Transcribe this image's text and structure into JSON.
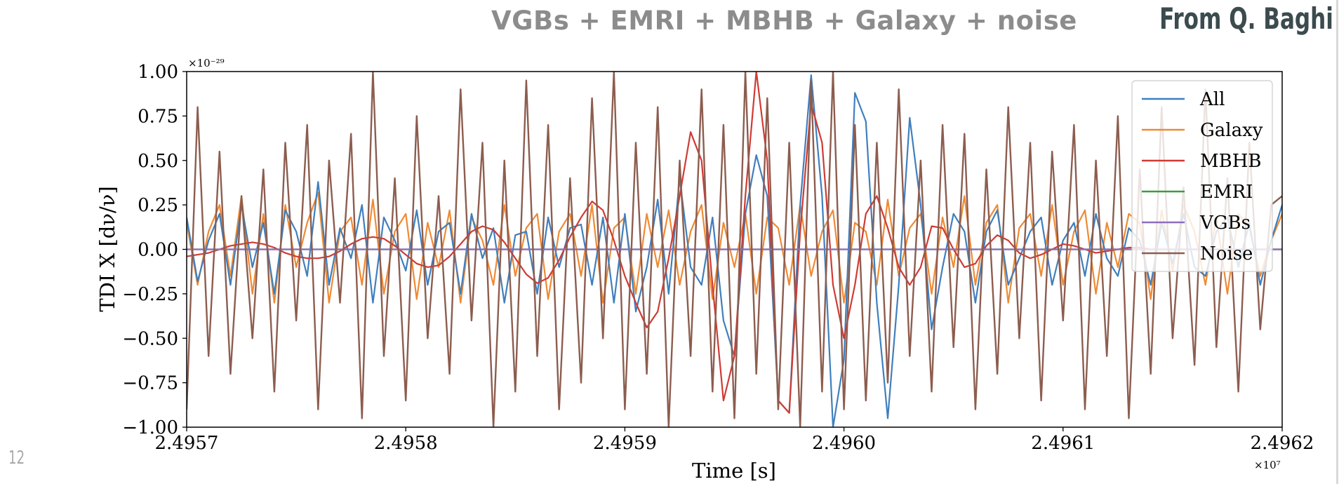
{
  "slide": {
    "title": "VGBs + EMRI + MBHB + Galaxy + noise",
    "attribution": "From Q. Baghi",
    "page_number": "12"
  },
  "chart_data": {
    "type": "line",
    "title": "",
    "xlabel": "Time [s]",
    "ylabel": "TDI X [dν/ν]",
    "x_scale_label": "×10⁷",
    "y_scale_label": "×10⁻²⁹",
    "xlim": [
      2.4957,
      2.4962
    ],
    "ylim": [
      -1.0,
      1.0
    ],
    "x_ticks": [
      2.4957,
      2.4958,
      2.4959,
      2.496,
      2.4961,
      2.4962
    ],
    "x_tick_labels": [
      "2.4957",
      "2.4958",
      "2.4959",
      "2.4960",
      "2.4961",
      "2.4962"
    ],
    "y_ticks": [
      1.0,
      0.75,
      0.5,
      0.25,
      0.0,
      -0.25,
      -0.5,
      -0.75,
      -1.0
    ],
    "y_tick_labels": [
      "1.00",
      "0.75",
      "0.50",
      "0.25",
      "0.00",
      "−0.25",
      "−0.50",
      "−0.75",
      "−1.00"
    ],
    "grid": false,
    "legend_position": "top-right",
    "x_units_note": "time in units of 1e7 s; y in units of 1e-29",
    "series": [
      {
        "name": "All",
        "color": "#3f7fbd",
        "x": [
          2.4957,
          2.495705,
          2.49571,
          2.495715,
          2.49572,
          2.495725,
          2.49573,
          2.495735,
          2.49574,
          2.495745,
          2.49575,
          2.495755,
          2.49576,
          2.495765,
          2.49577,
          2.495775,
          2.49578,
          2.495785,
          2.49579,
          2.495795,
          2.4958,
          2.495805,
          2.49581,
          2.495815,
          2.49582,
          2.495825,
          2.49583,
          2.495835,
          2.49584,
          2.495845,
          2.49585,
          2.495855,
          2.49586,
          2.495865,
          2.49587,
          2.495875,
          2.49588,
          2.495885,
          2.49589,
          2.495895,
          2.4959,
          2.495905,
          2.49591,
          2.495915,
          2.49592,
          2.495925,
          2.49593,
          2.495935,
          2.49594,
          2.495945,
          2.49595,
          2.495955,
          2.49596,
          2.495965,
          2.49597,
          2.495975,
          2.49598,
          2.495985,
          2.49599,
          2.495995,
          2.496,
          2.496005,
          2.49601,
          2.496015,
          2.49602,
          2.496025,
          2.49603,
          2.496035,
          2.49604,
          2.496045,
          2.49605,
          2.496055,
          2.49606,
          2.496065,
          2.49607,
          2.496075,
          2.49608,
          2.496085,
          2.49609,
          2.496095,
          2.4961,
          2.496105,
          2.49611,
          2.496115,
          2.49612,
          2.496125,
          2.49613,
          2.496135,
          2.49614,
          2.496145,
          2.49615,
          2.496155,
          2.49616,
          2.496165,
          2.49617,
          2.496175,
          2.49618,
          2.496185,
          2.49619,
          2.496195,
          2.4962
        ],
        "y": [
          0.18,
          -0.18,
          0.05,
          0.2,
          -0.2,
          0.25,
          -0.1,
          0.15,
          -0.25,
          0.22,
          0.1,
          -0.15,
          0.38,
          -0.2,
          0.12,
          -0.05,
          0.25,
          -0.3,
          0.18,
          0.05,
          -0.12,
          0.22,
          -0.2,
          0.1,
          0.15,
          -0.25,
          0.2,
          -0.05,
          0.12,
          -0.3,
          0.08,
          0.1,
          -0.25,
          0.18,
          -0.1,
          0.12,
          0.14,
          -0.2,
          0.18,
          -0.3,
          0.2,
          -0.35,
          -0.1,
          0.28,
          -0.25,
          0.4,
          -0.1,
          -0.2,
          0.18,
          -0.4,
          -0.6,
          0.2,
          0.53,
          0.3,
          -0.85,
          -0.92,
          0.25,
          0.98,
          0.3,
          -1.0,
          -0.62,
          0.88,
          0.72,
          -0.3,
          -0.95,
          -0.2,
          0.74,
          0.25,
          -0.45,
          -0.1,
          0.2,
          0.1,
          -0.3,
          0.1,
          0.22,
          -0.2,
          -0.05,
          0.1,
          0.18,
          -0.2,
          0.05,
          0.15,
          -0.15,
          0.2,
          -0.05,
          -0.15,
          0.12,
          0.05,
          -0.2,
          0.15,
          -0.08,
          0.2,
          -0.1,
          -0.15,
          0.1,
          0.18,
          -0.1,
          0.15,
          -0.2,
          0.05,
          0.25
        ]
      },
      {
        "name": "Galaxy",
        "color": "#ef8a33",
        "x": [
          2.4957,
          2.495705,
          2.49571,
          2.495715,
          2.49572,
          2.495725,
          2.49573,
          2.495735,
          2.49574,
          2.495745,
          2.49575,
          2.495755,
          2.49576,
          2.495765,
          2.49577,
          2.495775,
          2.49578,
          2.495785,
          2.49579,
          2.495795,
          2.4958,
          2.495805,
          2.49581,
          2.495815,
          2.49582,
          2.495825,
          2.49583,
          2.495835,
          2.49584,
          2.495845,
          2.49585,
          2.495855,
          2.49586,
          2.495865,
          2.49587,
          2.495875,
          2.49588,
          2.495885,
          2.49589,
          2.495895,
          2.4959,
          2.495905,
          2.49591,
          2.495915,
          2.49592,
          2.495925,
          2.49593,
          2.495935,
          2.49594,
          2.495945,
          2.49595,
          2.495955,
          2.49596,
          2.495965,
          2.49597,
          2.495975,
          2.49598,
          2.495985,
          2.49599,
          2.495995,
          2.496,
          2.496005,
          2.49601,
          2.496015,
          2.49602,
          2.496025,
          2.49603,
          2.496035,
          2.49604,
          2.496045,
          2.49605,
          2.496055,
          2.49606,
          2.496065,
          2.49607,
          2.496075,
          2.49608,
          2.496085,
          2.49609,
          2.496095,
          2.4961,
          2.496105,
          2.49611,
          2.496115,
          2.49612,
          2.496125,
          2.49613,
          2.496135,
          2.49614,
          2.496145,
          2.49615,
          2.496155,
          2.49616,
          2.496165,
          2.49617,
          2.496175,
          2.49618,
          2.496185,
          2.49619,
          2.496195,
          2.4962
        ],
        "y": [
          0.15,
          -0.2,
          0.1,
          0.25,
          -0.15,
          0.3,
          -0.25,
          0.2,
          -0.3,
          0.25,
          -0.1,
          0.15,
          0.32,
          -0.3,
          0.1,
          0.18,
          -0.2,
          0.28,
          -0.25,
          0.1,
          0.2,
          -0.28,
          0.15,
          -0.1,
          0.22,
          -0.3,
          0.18,
          0.05,
          -0.2,
          0.25,
          -0.15,
          0.12,
          0.2,
          -0.28,
          0.1,
          0.2,
          -0.15,
          0.25,
          -0.3,
          0.12,
          0.18,
          -0.25,
          0.2,
          -0.1,
          0.22,
          -0.2,
          0.1,
          0.25,
          -0.28,
          0.15,
          -0.1,
          0.2,
          -0.25,
          0.18,
          0.12,
          -0.2,
          0.25,
          -0.15,
          0.1,
          0.22,
          -0.3,
          0.15,
          0.1,
          -0.2,
          0.28,
          -0.15,
          0.12,
          0.2,
          -0.25,
          0.18,
          -0.1,
          0.3,
          -0.2,
          0.15,
          0.25,
          -0.3,
          0.12,
          0.2,
          -0.15,
          0.25,
          -0.2,
          0.1,
          0.22,
          -0.25,
          0.15,
          -0.1,
          0.2,
          0.15,
          -0.28,
          0.22,
          -0.12,
          0.25,
          0.1,
          -0.2,
          0.18,
          -0.25,
          0.2,
          0.12,
          -0.15,
          0.05,
          0.2
        ]
      },
      {
        "name": "MBHB",
        "color": "#cf3b34",
        "x": [
          2.4957,
          2.495705,
          2.49571,
          2.495715,
          2.49572,
          2.495725,
          2.49573,
          2.495735,
          2.49574,
          2.495745,
          2.49575,
          2.495755,
          2.49576,
          2.495765,
          2.49577,
          2.495775,
          2.49578,
          2.495785,
          2.49579,
          2.495795,
          2.4958,
          2.495805,
          2.49581,
          2.495815,
          2.49582,
          2.495825,
          2.49583,
          2.495835,
          2.49584,
          2.495845,
          2.49585,
          2.495855,
          2.49586,
          2.495865,
          2.49587,
          2.495875,
          2.49588,
          2.495885,
          2.49589,
          2.495895,
          2.4959,
          2.495905,
          2.49591,
          2.495915,
          2.49592,
          2.495925,
          2.49593,
          2.495935,
          2.49594,
          2.495945,
          2.49595,
          2.495955,
          2.49596,
          2.495965,
          2.49597,
          2.495975,
          2.49598,
          2.495985,
          2.49599,
          2.495995,
          2.496,
          2.496005,
          2.49601,
          2.496015,
          2.49602,
          2.496025,
          2.49603,
          2.496035,
          2.49604,
          2.496045,
          2.49605,
          2.496055,
          2.49606,
          2.496065,
          2.49607,
          2.496075,
          2.49608,
          2.496085,
          2.49609,
          2.496095,
          2.4961,
          2.496105,
          2.49611,
          2.496115,
          2.49612,
          2.496125,
          2.49613,
          2.496135,
          2.49614,
          2.496145,
          2.49615,
          2.496155,
          2.49616,
          2.496165,
          2.49617,
          2.496175,
          2.49618,
          2.496185,
          2.49619,
          2.496195,
          2.4962
        ],
        "y": [
          -0.04,
          -0.03,
          -0.02,
          0.0,
          0.02,
          0.03,
          0.04,
          0.03,
          0.01,
          -0.02,
          -0.04,
          -0.05,
          -0.05,
          -0.04,
          -0.01,
          0.03,
          0.06,
          0.07,
          0.06,
          0.02,
          -0.03,
          -0.08,
          -0.1,
          -0.09,
          -0.04,
          0.03,
          0.1,
          0.13,
          0.11,
          0.04,
          -0.05,
          -0.14,
          -0.19,
          -0.16,
          -0.06,
          0.07,
          0.18,
          0.27,
          0.22,
          0.05,
          -0.15,
          -0.3,
          -0.44,
          -0.35,
          -0.05,
          0.3,
          0.66,
          0.5,
          -0.2,
          -0.85,
          -0.6,
          0.3,
          1.0,
          0.5,
          -0.85,
          -0.92,
          0.1,
          0.82,
          0.6,
          -0.2,
          -0.5,
          -0.2,
          0.2,
          0.3,
          0.12,
          -0.1,
          -0.2,
          -0.1,
          0.13,
          0.12,
          0.0,
          -0.1,
          -0.08,
          0.02,
          0.08,
          0.05,
          -0.02,
          -0.05,
          -0.03,
          0.0,
          0.03,
          0.02,
          0.0,
          -0.02,
          -0.01,
          0.0,
          0.01,
          0.01,
          0.0,
          0.0,
          0.0,
          0.0,
          0.0,
          0.0,
          0.0,
          0.0,
          0.0,
          0.0,
          0.0,
          0.0,
          0.0
        ]
      },
      {
        "name": "EMRI",
        "color": "#3a9e3a",
        "x": [
          2.4957,
          2.4962
        ],
        "y": [
          0.0,
          0.0
        ]
      },
      {
        "name": "VGBs",
        "color": "#8e6dc2",
        "x": [
          2.4957,
          2.4962
        ],
        "y": [
          0.0,
          0.0
        ]
      },
      {
        "name": "Noise",
        "color": "#8c5d4f",
        "x": [
          2.4957,
          2.495705,
          2.49571,
          2.495715,
          2.49572,
          2.495725,
          2.49573,
          2.495735,
          2.49574,
          2.495745,
          2.49575,
          2.495755,
          2.49576,
          2.495765,
          2.49577,
          2.495775,
          2.49578,
          2.495785,
          2.49579,
          2.495795,
          2.4958,
          2.495805,
          2.49581,
          2.495815,
          2.49582,
          2.495825,
          2.49583,
          2.495835,
          2.49584,
          2.495845,
          2.49585,
          2.495855,
          2.49586,
          2.495865,
          2.49587,
          2.495875,
          2.49588,
          2.495885,
          2.49589,
          2.495895,
          2.4959,
          2.495905,
          2.49591,
          2.495915,
          2.49592,
          2.495925,
          2.49593,
          2.495935,
          2.49594,
          2.495945,
          2.49595,
          2.495955,
          2.49596,
          2.495965,
          2.49597,
          2.495975,
          2.49598,
          2.495985,
          2.49599,
          2.495995,
          2.496,
          2.496005,
          2.49601,
          2.496015,
          2.49602,
          2.496025,
          2.49603,
          2.496035,
          2.49604,
          2.496045,
          2.49605,
          2.496055,
          2.49606,
          2.496065,
          2.49607,
          2.496075,
          2.49608,
          2.496085,
          2.49609,
          2.496095,
          2.4961,
          2.496105,
          2.49611,
          2.496115,
          2.49612,
          2.496125,
          2.49613,
          2.496135,
          2.49614,
          2.496145,
          2.49615,
          2.496155,
          2.49616,
          2.496165,
          2.49617,
          2.496175,
          2.49618,
          2.496185,
          2.49619,
          2.496195,
          2.4962
        ],
        "y": [
          -0.9,
          0.8,
          -0.6,
          0.55,
          -0.7,
          0.3,
          -0.5,
          0.45,
          -0.8,
          0.6,
          -0.4,
          0.7,
          -0.9,
          0.5,
          -0.3,
          0.65,
          -0.95,
          1.0,
          -0.6,
          0.4,
          -0.85,
          0.75,
          -0.5,
          0.3,
          -0.7,
          0.9,
          -0.4,
          0.6,
          -1.0,
          0.5,
          -0.8,
          0.95,
          -0.6,
          0.7,
          -0.9,
          0.4,
          -0.75,
          0.85,
          -0.5,
          1.0,
          -0.9,
          0.6,
          -0.7,
          0.8,
          -1.0,
          0.5,
          -0.6,
          0.9,
          -0.8,
          0.7,
          -0.95,
          1.0,
          -0.7,
          0.85,
          -0.9,
          0.6,
          -1.0,
          0.95,
          -0.8,
          1.0,
          -0.9,
          0.7,
          -0.85,
          0.6,
          -0.75,
          0.9,
          -0.6,
          0.5,
          -0.8,
          0.7,
          -0.55,
          0.65,
          -0.9,
          0.45,
          -0.7,
          0.8,
          -0.5,
          0.6,
          -0.85,
          0.55,
          -0.4,
          0.7,
          -0.9,
          0.5,
          -0.6,
          0.75,
          -0.95,
          0.45,
          -0.7,
          0.8,
          -0.5,
          0.35,
          -0.65,
          0.9,
          -0.55,
          0.4,
          -0.8,
          0.6,
          -0.45,
          0.25,
          0.3
        ]
      }
    ]
  }
}
